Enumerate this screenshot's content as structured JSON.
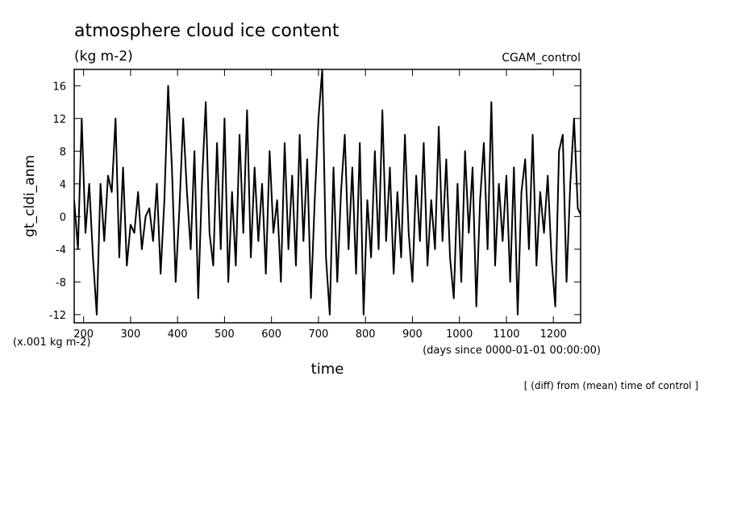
{
  "chart_data": {
    "type": "line",
    "title": "atmosphere cloud ice content",
    "subtitle": "(kg m-2)",
    "run_label": "CGAM_control",
    "ylabel": "gt_cldi_anm",
    "y_unit_note": "(x.001 kg m-2)",
    "x_unit_note": "(days since 0000-01-01 00:00:00)",
    "xlabel": "time",
    "footnote": "[ (diff) from (mean) time of control ]",
    "xlim": [
      180,
      1258
    ],
    "ylim": [
      -13,
      18
    ],
    "xticks": [
      200,
      300,
      400,
      500,
      600,
      700,
      800,
      900,
      1000,
      1100,
      1200
    ],
    "yticks": [
      -12,
      -8,
      -4,
      0,
      4,
      8,
      12,
      16
    ],
    "grid": false,
    "series": [
      {
        "color": "#000000",
        "x": [
          180,
          188,
          196,
          204,
          212,
          220,
          228,
          236,
          244,
          252,
          260,
          268,
          276,
          284,
          292,
          300,
          308,
          316,
          324,
          332,
          340,
          348,
          356,
          364,
          372,
          380,
          388,
          396,
          404,
          412,
          420,
          428,
          436,
          444,
          452,
          460,
          468,
          476,
          484,
          492,
          500,
          508,
          516,
          524,
          532,
          540,
          548,
          556,
          564,
          572,
          580,
          588,
          596,
          604,
          612,
          620,
          628,
          636,
          644,
          652,
          660,
          668,
          676,
          684,
          692,
          700,
          708,
          716,
          724,
          732,
          740,
          748,
          756,
          764,
          772,
          780,
          788,
          796,
          804,
          812,
          820,
          828,
          836,
          844,
          852,
          860,
          868,
          876,
          884,
          892,
          900,
          908,
          916,
          924,
          932,
          940,
          948,
          956,
          964,
          972,
          980,
          988,
          996,
          1004,
          1012,
          1020,
          1028,
          1036,
          1044,
          1052,
          1060,
          1068,
          1076,
          1084,
          1092,
          1100,
          1108,
          1116,
          1124,
          1132,
          1140,
          1148,
          1156,
          1164,
          1172,
          1180,
          1188,
          1196,
          1204,
          1212,
          1220,
          1228,
          1236,
          1244,
          1252,
          1260
        ],
        "values": [
          2,
          -4,
          12,
          -2,
          4,
          -5,
          -12,
          4,
          -3,
          5,
          3,
          12,
          -5,
          6,
          -6,
          -1,
          -2,
          3,
          -4,
          0,
          1,
          -3,
          4,
          -7,
          2,
          16,
          6,
          -8,
          1,
          12,
          3,
          -4,
          8,
          -10,
          4,
          14,
          -2,
          -6,
          9,
          -4,
          12,
          -8,
          3,
          -6,
          10,
          -2,
          13,
          -5,
          6,
          -3,
          4,
          -7,
          8,
          -2,
          2,
          -8,
          9,
          -4,
          5,
          -6,
          10,
          -3,
          7,
          -10,
          2,
          12,
          18,
          -5,
          -12,
          6,
          -8,
          3,
          10,
          -4,
          6,
          -7,
          9,
          -12,
          2,
          -5,
          8,
          -4,
          13,
          -3,
          6,
          -7,
          3,
          -5,
          10,
          -2,
          -8,
          5,
          -3,
          9,
          -6,
          2,
          -4,
          11,
          -3,
          7,
          -5,
          -10,
          4,
          -8,
          8,
          -2,
          6,
          -11,
          2,
          9,
          -4,
          14,
          -6,
          4,
          -3,
          5,
          -8,
          6,
          -12,
          3,
          7,
          -4,
          10,
          -6,
          3,
          -2,
          5,
          -5,
          -11,
          8,
          10,
          -8,
          4,
          12,
          1,
          0
        ]
      }
    ]
  }
}
